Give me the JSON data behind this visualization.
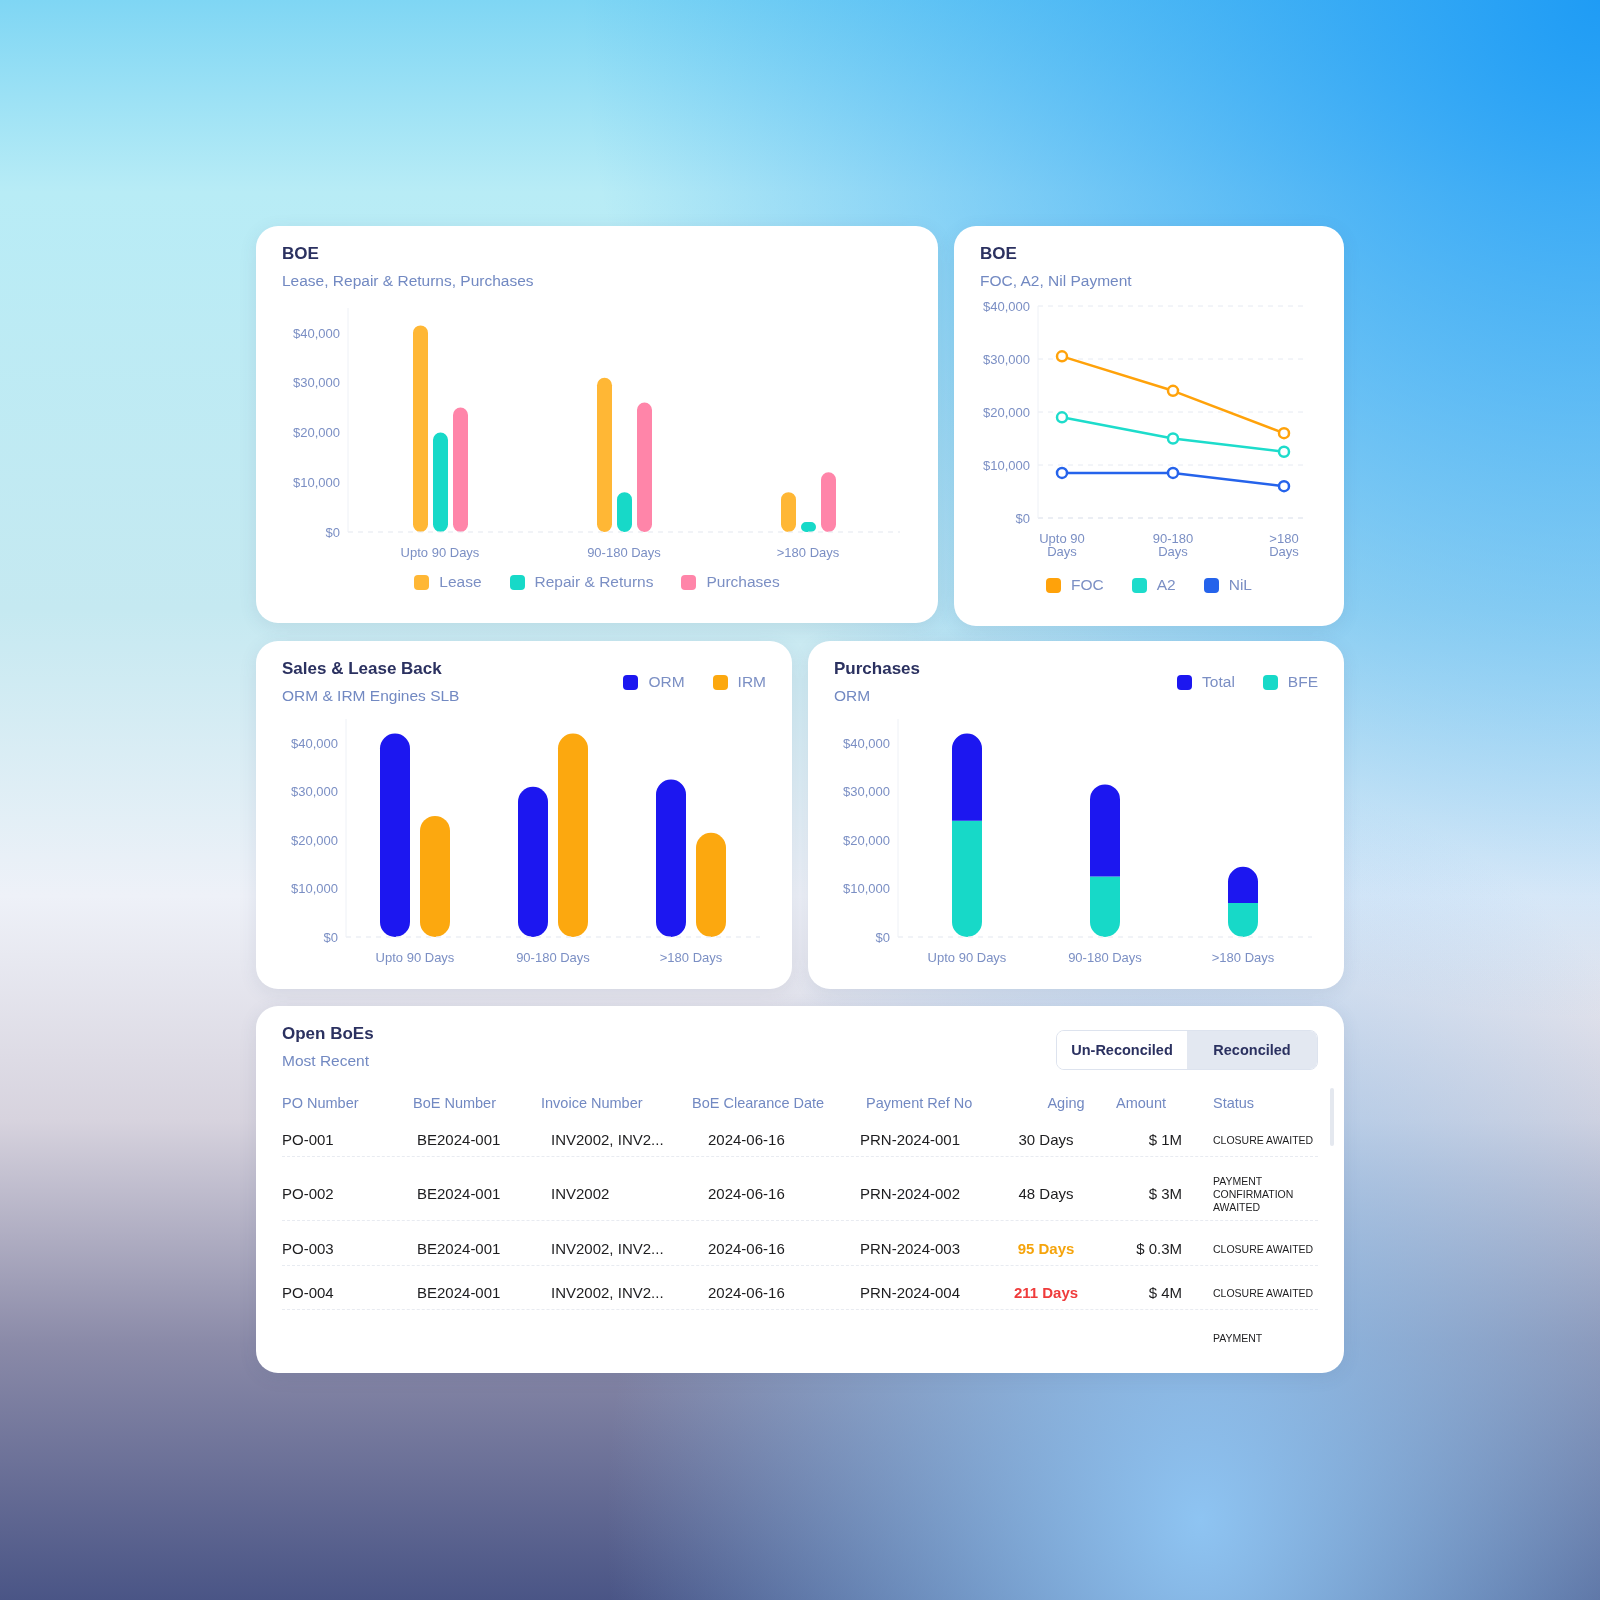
{
  "chart_data": [
    {
      "type": "bar",
      "title": "BOE",
      "subtitle": "Lease, Repair & Returns, Purchases",
      "categories": [
        "Upto 90 Days",
        "90-180 Days",
        ">180 Days"
      ],
      "series": [
        {
          "name": "Lease",
          "color": "#ffb735",
          "values": [
            41500,
            31000,
            8000
          ]
        },
        {
          "name": "Repair & Returns",
          "color": "#17d9c8",
          "values": [
            20000,
            8000,
            2000
          ]
        },
        {
          "name": "Purchases",
          "color": "#ff85a9",
          "values": [
            25000,
            26000,
            12000
          ]
        }
      ],
      "ylim": [
        0,
        45000
      ],
      "yticks": [
        {
          "value": 0,
          "label": "$0"
        },
        {
          "value": 10000,
          "label": "$10,000"
        },
        {
          "value": 20000,
          "label": "$20,000"
        },
        {
          "value": 30000,
          "label": "$30,000"
        },
        {
          "value": 40000,
          "label": "$40,000"
        }
      ],
      "grid": false,
      "legend": "bottom"
    },
    {
      "type": "line",
      "title": "BOE",
      "subtitle": "FOC, A2, Nil Payment",
      "categories": [
        "Upto 90 Days",
        "90-180 Days",
        ">180 Days"
      ],
      "series": [
        {
          "name": "FOC",
          "color": "#ffa20a",
          "values": [
            30500,
            24000,
            16000
          ]
        },
        {
          "name": "A2",
          "color": "#1ddccb",
          "values": [
            19000,
            15000,
            12500
          ]
        },
        {
          "name": "NiL",
          "color": "#2563eb",
          "values": [
            8500,
            8500,
            6000
          ]
        }
      ],
      "ylim": [
        0,
        40000
      ],
      "yticks": [
        {
          "value": 0,
          "label": "$0"
        },
        {
          "value": 10000,
          "label": "$10,000"
        },
        {
          "value": 20000,
          "label": "$20,000"
        },
        {
          "value": 30000,
          "label": "$30,000"
        },
        {
          "value": 40000,
          "label": "$40,000"
        }
      ],
      "grid": "y",
      "legend": "bottom",
      "marker": "circle",
      "line_style": "solid"
    },
    {
      "type": "bar",
      "title": "Sales & Lease Back",
      "subtitle": "ORM & IRM Engines SLB",
      "categories": [
        "Upto 90 Days",
        "90-180 Days",
        ">180 Days"
      ],
      "series": [
        {
          "name": "ORM",
          "color": "#1c17f0",
          "values": [
            42000,
            31000,
            32500
          ]
        },
        {
          "name": "IRM",
          "color": "#fca80f",
          "values": [
            25000,
            42000,
            21500
          ]
        }
      ],
      "ylim": [
        0,
        45000
      ],
      "yticks": [
        {
          "value": 0,
          "label": "$0"
        },
        {
          "value": 10000,
          "label": "$10,000"
        },
        {
          "value": 20000,
          "label": "$20,000"
        },
        {
          "value": 30000,
          "label": "$30,000"
        },
        {
          "value": 40000,
          "label": "$40,000"
        }
      ],
      "grid": false,
      "legend": "top right"
    },
    {
      "type": "bar",
      "title": "Purchases",
      "subtitle": "ORM",
      "categories": [
        "Upto 90 Days",
        "90-180 Days",
        ">180 Days"
      ],
      "stacked": true,
      "series": [
        {
          "name": "BFE",
          "color": "#17d9c8",
          "values": [
            24000,
            12500,
            7000
          ]
        },
        {
          "name": "Total",
          "color": "#1c17f0",
          "values": [
            18000,
            19000,
            7500
          ]
        }
      ],
      "ylim": [
        0,
        45000
      ],
      "yticks": [
        {
          "value": 0,
          "label": "$0"
        },
        {
          "value": 10000,
          "label": "$10,000"
        },
        {
          "value": 20000,
          "label": "$20,000"
        },
        {
          "value": 30000,
          "label": "$30,000"
        },
        {
          "value": 40000,
          "label": "$40,000"
        }
      ],
      "grid": false,
      "legend": "top right"
    },
    {
      "type": "other",
      "title": "Open BoEs",
      "subtitle": "Most Recent",
      "annotations": [
        "Un-Reconciled",
        "Reconciled",
        "PO Number",
        "BoE Number",
        "Invoice Number",
        "BoE Clearance Date",
        "Payment Ref No",
        "Aging",
        "Amount",
        "Status",
        "PO-001",
        "BE2024-001",
        "INV2002, INV2...",
        "2024-06-16",
        "PRN-2024-001",
        "30 Days",
        "$ 1M",
        "CLOSURE AWAITED",
        "PO-002",
        "BE2024-001",
        "INV2002",
        "2024-06-16",
        "PRN-2024-002",
        "48 Days",
        "$ 3M",
        "PAYMENT CONFIRMATION AWAITED",
        "PO-003",
        "BE2024-001",
        "INV2002, INV2...",
        "2024-06-16",
        "PRN-2024-003",
        "95 Days",
        "$ 0.3M",
        "CLOSURE AWAITED",
        "PO-004",
        "BE2024-001",
        "INV2002, INV2...",
        "2024-06-16",
        "PRN-2024-004",
        "211 Days",
        "$ 4M",
        "CLOSURE AWAITED",
        "PAYMENT"
      ]
    }
  ]
}
